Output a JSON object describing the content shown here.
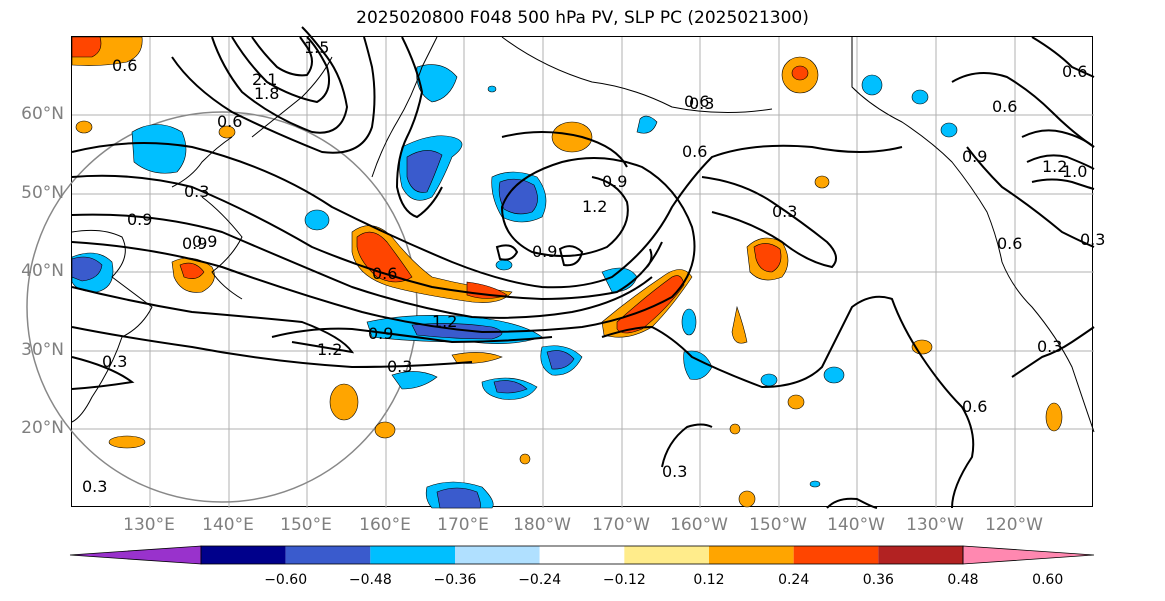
{
  "title": "2025020800 F048 500 hPa PV, SLP PC (2025021300)",
  "lat_labels": [
    "60°N",
    "50°N",
    "40°N",
    "30°N",
    "20°N"
  ],
  "lon_labels": [
    "130°E",
    "140°E",
    "150°E",
    "160°E",
    "170°E",
    "180°W",
    "170°W",
    "160°W",
    "150°W",
    "140°W",
    "130°W",
    "120°W"
  ],
  "colorbar": {
    "ticks": [
      "−0.60",
      "−0.48",
      "−0.36",
      "−0.24",
      "−0.12",
      "0.12",
      "0.24",
      "0.36",
      "0.48",
      "0.60"
    ],
    "colors": [
      "#9932cc",
      "#00008b",
      "#3a5bcd",
      "#00bfff",
      "#b0e0ff",
      "#ffffff",
      "#ffec8b",
      "#ffa500",
      "#ff4500",
      "#b22222",
      "#ff88b0"
    ]
  },
  "contour_labels": [
    "0.6",
    "2.1",
    "1.8",
    "1.5",
    "0.6",
    "0.3",
    "0.9",
    "0.9",
    "0.6",
    "0.3",
    "1.2",
    "0.9",
    "0.9",
    "1.2",
    "0.6",
    "0.3",
    "0.9",
    "0.6",
    "0.6",
    "0.3",
    "0.3",
    "0.6",
    "0.9",
    "0.3",
    "1.2",
    "0.3",
    "0.9",
    "1.2",
    "0.6",
    "0.6",
    "0.3",
    "0.3",
    "1.0"
  ]
}
